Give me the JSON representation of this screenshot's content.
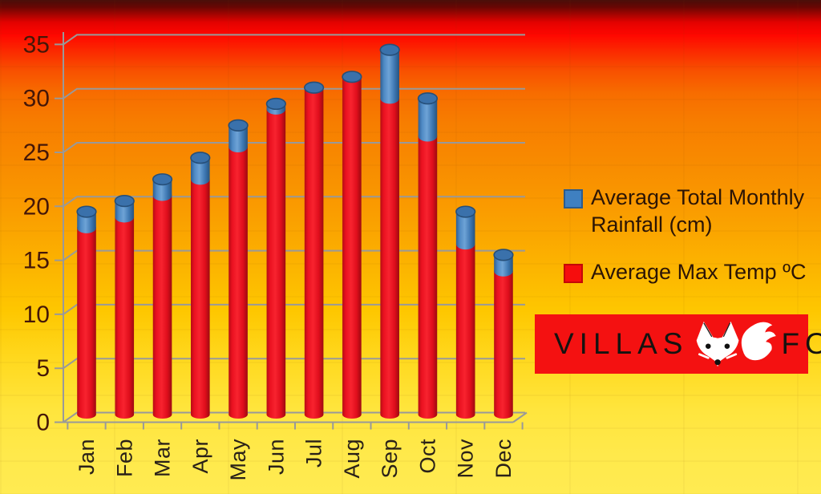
{
  "chart_data": {
    "type": "bar",
    "stacked": true,
    "categories": [
      "Jan",
      "Feb",
      "Mar",
      "Apr",
      "May",
      "Jun",
      "Jul",
      "Aug",
      "Sep",
      "Oct",
      "Nov",
      "Dec"
    ],
    "series": [
      {
        "name": "Average Max Temp ºC",
        "color": "#ee1020",
        "values": [
          16.5,
          17.5,
          19.5,
          21,
          24,
          27.5,
          30,
          30.5,
          28.5,
          25,
          15,
          12.5
        ]
      },
      {
        "name": "Average Total Monthly Rainfall (cm)",
        "color": "#3f80c1",
        "values": [
          2.5,
          2.5,
          2.5,
          3,
          3,
          1.5,
          0.5,
          1,
          5.5,
          4.5,
          4,
          2.5
        ]
      }
    ],
    "stack_order_bottom_to_top": [
      "Average Max Temp ºC",
      "Average Total Monthly Rainfall (cm)"
    ],
    "title": "",
    "xlabel": "",
    "ylabel": "",
    "ylim": [
      0,
      35
    ],
    "yticks": [
      0,
      5,
      10,
      15,
      20,
      25,
      30,
      35
    ],
    "grid": true,
    "grid_color": "#999999",
    "legend_position": "right"
  },
  "legend": {
    "items": [
      {
        "label": "Average Total Monthly Rainfall (cm)",
        "color": "#3f80c1"
      },
      {
        "label": "Average Max Temp ºC",
        "color": "#f60d0d"
      }
    ]
  },
  "logo": {
    "villas": "VILLAS",
    "fox": "FOX",
    "background": "#f41111",
    "text_color": "#151310",
    "icon": "fox-icon"
  }
}
